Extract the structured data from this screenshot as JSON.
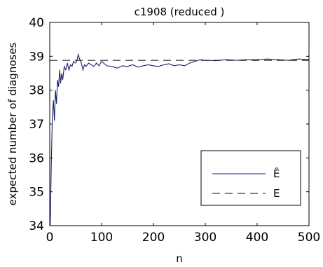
{
  "chart_data": {
    "type": "line",
    "title": "c1908 (reduced  )",
    "xlabel": "n",
    "ylabel": "expected number of diagnoses",
    "xlim": [
      0,
      500
    ],
    "ylim": [
      34,
      40
    ],
    "xticks": [
      0,
      100,
      200,
      300,
      400,
      500
    ],
    "yticks": [
      34,
      35,
      36,
      37,
      38,
      39,
      40
    ],
    "grid": false,
    "legend_position": "bottom-right",
    "series": [
      {
        "name": "Ê",
        "style": "solid",
        "color": "#1a1f6e",
        "x": [
          1,
          3,
          5,
          7,
          9,
          11,
          13,
          15,
          17,
          19,
          21,
          23,
          25,
          28,
          31,
          34,
          37,
          40,
          43,
          46,
          49,
          52,
          55,
          58,
          61,
          64,
          67,
          70,
          75,
          80,
          85,
          90,
          95,
          100,
          110,
          120,
          130,
          140,
          150,
          160,
          170,
          180,
          190,
          200,
          210,
          220,
          230,
          240,
          250,
          260,
          270,
          280,
          290,
          300,
          320,
          340,
          360,
          380,
          400,
          420,
          440,
          460,
          480,
          500
        ],
        "y": [
          34.0,
          35.8,
          37.2,
          37.7,
          37.1,
          38.0,
          37.6,
          38.3,
          38.1,
          38.6,
          38.2,
          38.5,
          38.3,
          38.7,
          38.6,
          38.8,
          38.6,
          38.75,
          38.7,
          38.85,
          38.8,
          38.85,
          39.05,
          38.9,
          38.8,
          38.6,
          38.75,
          38.7,
          38.8,
          38.75,
          38.7,
          38.8,
          38.72,
          38.85,
          38.72,
          38.7,
          38.65,
          38.72,
          38.7,
          38.75,
          38.68,
          38.72,
          38.75,
          38.72,
          38.7,
          38.75,
          38.78,
          38.72,
          38.75,
          38.72,
          38.8,
          38.85,
          38.9,
          38.88,
          38.87,
          38.9,
          38.88,
          38.9,
          38.9,
          38.92,
          38.9,
          38.88,
          38.92,
          38.9
        ]
      },
      {
        "name": "E",
        "style": "dashed",
        "color": "#000000",
        "x": [
          0,
          500
        ],
        "y": [
          38.88,
          38.88
        ]
      }
    ]
  }
}
